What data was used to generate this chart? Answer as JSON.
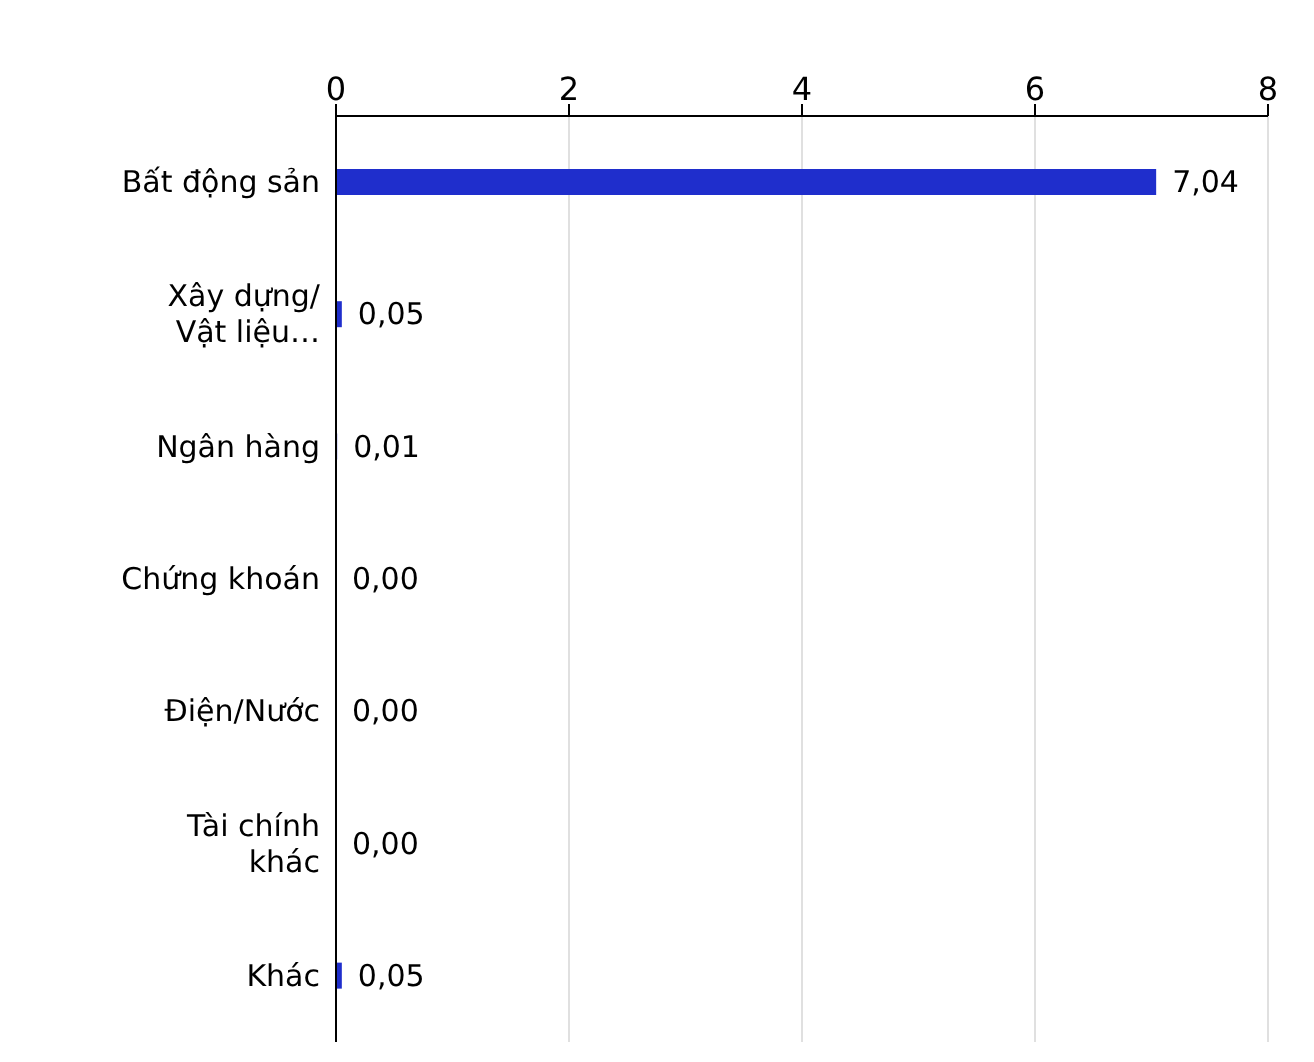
{
  "chart_data": {
    "type": "bar",
    "orientation": "horizontal",
    "categories": [
      "Bất động sản",
      "Xây dựng/ Vật liệu…",
      "Ngân hàng",
      "Chứng khoán",
      "Điện/Nước",
      "Tài chính khác",
      "Khác"
    ],
    "values": [
      7.04,
      0.05,
      0.01,
      0,
      0,
      0,
      0.05
    ],
    "value_labels": [
      "7,04",
      "0,05",
      "0,01",
      "0,00",
      "0,00",
      "0,00",
      "0,05"
    ],
    "color": "#1f2ecc",
    "xlim": [
      0,
      8
    ],
    "xticks": [
      0,
      2,
      4,
      6,
      8
    ],
    "grid": "x"
  }
}
